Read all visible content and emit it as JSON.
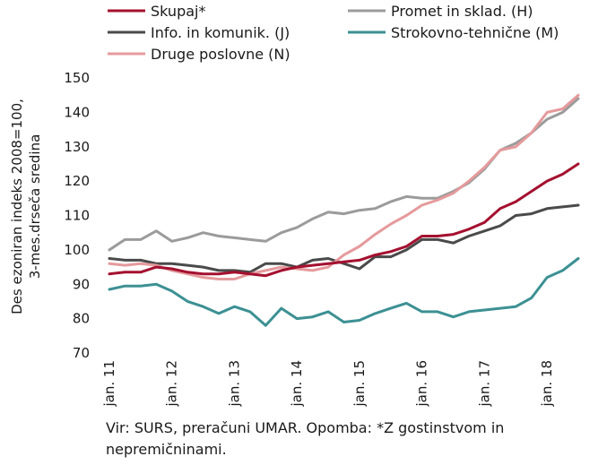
{
  "chart_data": {
    "type": "line",
    "ylabel_lines": [
      "Des ezoniran indeks 2008=100,",
      "3-mes.drseča sredina"
    ],
    "ylim": [
      70,
      150
    ],
    "yticks": [
      70,
      80,
      90,
      100,
      110,
      120,
      130,
      140,
      150
    ],
    "xlim": [
      2011.0,
      2018.6
    ],
    "x_tick_labels": [
      {
        "x": 2011,
        "label": "jan. 11"
      },
      {
        "x": 2012,
        "label": "jan. 12"
      },
      {
        "x": 2013,
        "label": "jan. 13"
      },
      {
        "x": 2014,
        "label": "jan. 14"
      },
      {
        "x": 2015,
        "label": "jan. 15"
      },
      {
        "x": 2016,
        "label": "jan. 16"
      },
      {
        "x": 2017,
        "label": "jan. 17"
      },
      {
        "x": 2018,
        "label": "jan. 18"
      }
    ],
    "grid": false,
    "legend_position": "top",
    "series": [
      {
        "name": "Skupaj*",
        "color": "#a4102f",
        "points": [
          [
            2011.0,
            93
          ],
          [
            2011.25,
            93.5
          ],
          [
            2011.5,
            93.5
          ],
          [
            2011.75,
            95
          ],
          [
            2012.0,
            94.5
          ],
          [
            2012.25,
            93.5
          ],
          [
            2012.5,
            93
          ],
          [
            2012.75,
            93
          ],
          [
            2013.0,
            93.5
          ],
          [
            2013.25,
            93
          ],
          [
            2013.5,
            92.5
          ],
          [
            2013.75,
            94
          ],
          [
            2014.0,
            95
          ],
          [
            2014.25,
            95.5
          ],
          [
            2014.5,
            96
          ],
          [
            2014.75,
            96.5
          ],
          [
            2015.0,
            97
          ],
          [
            2015.25,
            98.5
          ],
          [
            2015.5,
            99.5
          ],
          [
            2015.75,
            101
          ],
          [
            2016.0,
            104
          ],
          [
            2016.25,
            104
          ],
          [
            2016.5,
            104.5
          ],
          [
            2016.75,
            106
          ],
          [
            2017.0,
            108
          ],
          [
            2017.25,
            112
          ],
          [
            2017.5,
            114
          ],
          [
            2017.75,
            117
          ],
          [
            2018.0,
            120
          ],
          [
            2018.25,
            122
          ],
          [
            2018.5,
            125
          ]
        ]
      },
      {
        "name": "Promet in sklad. (H)",
        "color": "#9b9b9b",
        "points": [
          [
            2011.0,
            100
          ],
          [
            2011.25,
            103
          ],
          [
            2011.5,
            103
          ],
          [
            2011.75,
            105.5
          ],
          [
            2012.0,
            102.5
          ],
          [
            2012.25,
            103.5
          ],
          [
            2012.5,
            105
          ],
          [
            2012.75,
            104
          ],
          [
            2013.0,
            103.5
          ],
          [
            2013.25,
            103
          ],
          [
            2013.5,
            102.5
          ],
          [
            2013.75,
            105
          ],
          [
            2014.0,
            106.5
          ],
          [
            2014.25,
            109
          ],
          [
            2014.5,
            111
          ],
          [
            2014.75,
            110.5
          ],
          [
            2015.0,
            111.5
          ],
          [
            2015.25,
            112
          ],
          [
            2015.5,
            114
          ],
          [
            2015.75,
            115.5
          ],
          [
            2016.0,
            115
          ],
          [
            2016.25,
            115
          ],
          [
            2016.5,
            117
          ],
          [
            2016.75,
            119.5
          ],
          [
            2017.0,
            123.5
          ],
          [
            2017.25,
            129
          ],
          [
            2017.5,
            131
          ],
          [
            2017.75,
            134
          ],
          [
            2018.0,
            138
          ],
          [
            2018.25,
            140
          ],
          [
            2018.5,
            144
          ]
        ]
      },
      {
        "name": "Info. in komunik. (J)",
        "color": "#4a4a4a",
        "points": [
          [
            2011.0,
            97.5
          ],
          [
            2011.25,
            97
          ],
          [
            2011.5,
            97
          ],
          [
            2011.75,
            96
          ],
          [
            2012.0,
            96
          ],
          [
            2012.25,
            95.5
          ],
          [
            2012.5,
            95
          ],
          [
            2012.75,
            94
          ],
          [
            2013.0,
            94
          ],
          [
            2013.25,
            93.5
          ],
          [
            2013.5,
            96
          ],
          [
            2013.75,
            96
          ],
          [
            2014.0,
            95
          ],
          [
            2014.25,
            97
          ],
          [
            2014.5,
            97.5
          ],
          [
            2014.75,
            96
          ],
          [
            2015.0,
            94.5
          ],
          [
            2015.25,
            98
          ],
          [
            2015.5,
            98
          ],
          [
            2015.75,
            100
          ],
          [
            2016.0,
            103
          ],
          [
            2016.25,
            103
          ],
          [
            2016.5,
            102
          ],
          [
            2016.75,
            104
          ],
          [
            2017.0,
            105.5
          ],
          [
            2017.25,
            107
          ],
          [
            2017.5,
            110
          ],
          [
            2017.75,
            110.5
          ],
          [
            2018.0,
            112
          ],
          [
            2018.25,
            112.5
          ],
          [
            2018.5,
            113
          ]
        ]
      },
      {
        "name": "Strokovno-tehnične (M)",
        "color": "#3c9093",
        "points": [
          [
            2011.0,
            88.5
          ],
          [
            2011.25,
            89.5
          ],
          [
            2011.5,
            89.5
          ],
          [
            2011.75,
            90
          ],
          [
            2012.0,
            88
          ],
          [
            2012.25,
            85
          ],
          [
            2012.5,
            83.5
          ],
          [
            2012.75,
            81.5
          ],
          [
            2013.0,
            83.5
          ],
          [
            2013.25,
            82
          ],
          [
            2013.5,
            78
          ],
          [
            2013.75,
            83
          ],
          [
            2014.0,
            80
          ],
          [
            2014.25,
            80.5
          ],
          [
            2014.5,
            82
          ],
          [
            2014.75,
            79
          ],
          [
            2015.0,
            79.5
          ],
          [
            2015.25,
            81.5
          ],
          [
            2015.5,
            83
          ],
          [
            2015.75,
            84.5
          ],
          [
            2016.0,
            82
          ],
          [
            2016.25,
            82
          ],
          [
            2016.5,
            80.5
          ],
          [
            2016.75,
            82
          ],
          [
            2017.0,
            82.5
          ],
          [
            2017.25,
            83
          ],
          [
            2017.5,
            83.5
          ],
          [
            2017.75,
            86
          ],
          [
            2018.0,
            92
          ],
          [
            2018.25,
            94
          ],
          [
            2018.5,
            97.5
          ]
        ]
      },
      {
        "name": "Druge poslovne (N)",
        "color": "#e59a9c",
        "points": [
          [
            2011.0,
            96
          ],
          [
            2011.25,
            95.5
          ],
          [
            2011.5,
            96
          ],
          [
            2011.75,
            95.5
          ],
          [
            2012.0,
            94
          ],
          [
            2012.25,
            93
          ],
          [
            2012.5,
            92
          ],
          [
            2012.75,
            91.5
          ],
          [
            2013.0,
            91.5
          ],
          [
            2013.25,
            93
          ],
          [
            2013.5,
            94
          ],
          [
            2013.75,
            95
          ],
          [
            2014.0,
            94.5
          ],
          [
            2014.25,
            94
          ],
          [
            2014.5,
            95
          ],
          [
            2014.75,
            98.5
          ],
          [
            2015.0,
            101
          ],
          [
            2015.25,
            104.5
          ],
          [
            2015.5,
            107.5
          ],
          [
            2015.75,
            110
          ],
          [
            2016.0,
            113
          ],
          [
            2016.25,
            114.5
          ],
          [
            2016.5,
            116.5
          ],
          [
            2016.75,
            120
          ],
          [
            2017.0,
            124
          ],
          [
            2017.25,
            129
          ],
          [
            2017.5,
            130
          ],
          [
            2017.75,
            134
          ],
          [
            2018.0,
            140
          ],
          [
            2018.25,
            141
          ],
          [
            2018.5,
            145
          ]
        ]
      }
    ]
  },
  "note": "Vir: SURS, preračuni UMAR. Opomba: *Z gostinstvom in nepremičninami."
}
